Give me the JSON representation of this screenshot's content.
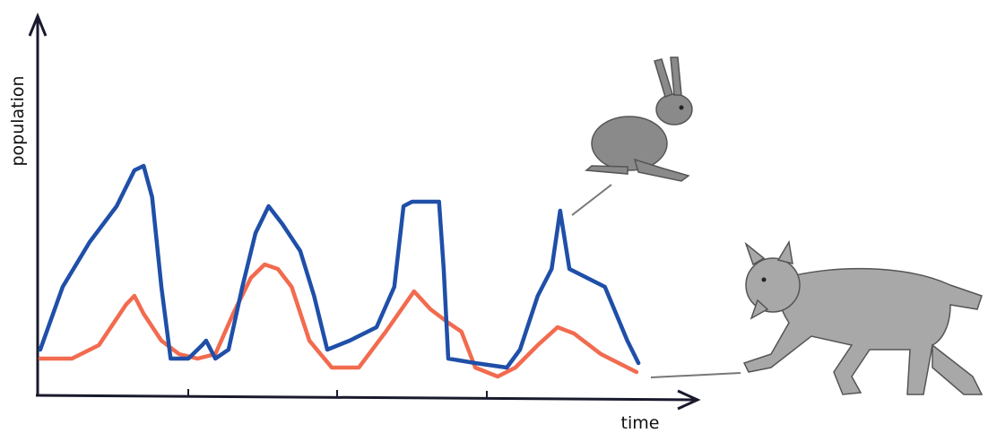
{
  "chart_data": {
    "type": "line",
    "xlabel": "time",
    "ylabel": "population",
    "xlim": [
      0,
      100
    ],
    "ylim": [
      0,
      105
    ],
    "series": [
      {
        "color": "#1f4fa8",
        "x": [
          0.4,
          3.8,
          7.9,
          12,
          14.7,
          16.1,
          17.4,
          18.8,
          20.2,
          22.9,
          25,
          25.6,
          27,
          29,
          31.1,
          33.1,
          35.1,
          37.2,
          39.9,
          42,
          44,
          47.4,
          51.5,
          54.2,
          55.6,
          56.9,
          61,
          61.7,
          62.4,
          66.5,
          71.3,
          73.3,
          76,
          78.1,
          79.4,
          80.8,
          83.5,
          86.2,
          89.6,
          91.3
        ],
        "values": [
          12.5,
          30,
          42.5,
          52.5,
          62.5,
          63.75,
          55,
          30,
          10,
          10,
          13.75,
          15,
          10,
          12.5,
          30,
          45,
          52.5,
          47.5,
          40,
          27.5,
          12.5,
          15,
          18.75,
          30,
          52.5,
          53.75,
          53.75,
          35,
          10,
          8.75,
          7.5,
          12.5,
          27.5,
          35,
          51.25,
          35,
          32.5,
          30,
          15,
          8.75
        ]
      },
      {
        "color": "#f26b4f",
        "x": [
          0.4,
          5.2,
          9.3,
          13.4,
          14.7,
          16.1,
          18.8,
          21.5,
          24.3,
          27,
          29.7,
          32.4,
          34.5,
          36.5,
          38.6,
          41.3,
          44.7,
          48.8,
          52.9,
          57.2,
          59.7,
          62.4,
          64.4,
          66.5,
          69.9,
          72.6,
          76,
          79,
          81.5,
          85.6,
          91
        ],
        "values": [
          10,
          10,
          13.75,
          25,
          27.5,
          22.5,
          15,
          11.25,
          10,
          11.25,
          22.5,
          32.5,
          36.25,
          35,
          30,
          15,
          7.5,
          7.5,
          17.5,
          28.75,
          23.75,
          20,
          17.5,
          7.5,
          5,
          7.5,
          13.75,
          18.75,
          17,
          11.25,
          6.25
        ]
      }
    ]
  }
}
